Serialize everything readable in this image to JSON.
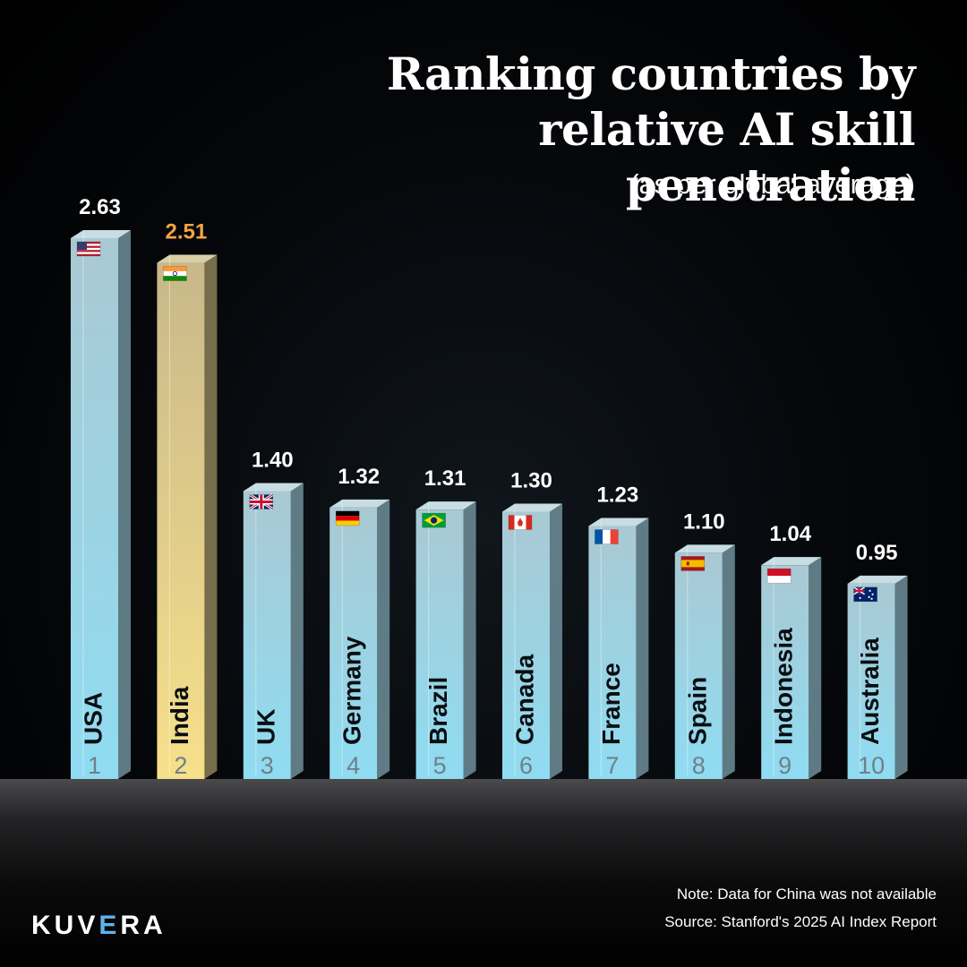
{
  "title_line1": "Ranking countries by",
  "title_line2": "relative AI skill penetration",
  "subtitle": "(as per global average)",
  "note": "Note: Data for China was not available",
  "source": "Source: Stanford's 2025 AI Index Report",
  "brand": {
    "part1": "KUV",
    "part2": "E",
    "part3": "RA"
  },
  "colors": {
    "bar_blue_top": "#a9c9d3",
    "bar_blue_bottom": "#8fdcf2",
    "bar_gold_top": "#c8b88a",
    "bar_gold_bottom": "#f7e08a",
    "highlight_label": "#f2a444",
    "label": "#ffffff"
  },
  "chart_data": {
    "type": "bar",
    "categories": [
      "USA",
      "India",
      "UK",
      "Germany",
      "Brazil",
      "Canada",
      "France",
      "Spain",
      "Indonesia",
      "Australia"
    ],
    "ranks": [
      "1",
      "2",
      "3",
      "4",
      "5",
      "6",
      "7",
      "8",
      "9",
      "10"
    ],
    "values": [
      2.63,
      2.51,
      1.4,
      1.32,
      1.31,
      1.3,
      1.23,
      1.1,
      1.04,
      0.95
    ],
    "value_labels": [
      "2.63",
      "2.51",
      "1.40",
      "1.32",
      "1.31",
      "1.30",
      "1.23",
      "1.10",
      "1.04",
      "0.95"
    ],
    "flags": [
      "us-flag-icon",
      "india-flag-icon",
      "uk-flag-icon",
      "germany-flag-icon",
      "brazil-flag-icon",
      "canada-flag-icon",
      "france-flag-icon",
      "spain-flag-icon",
      "indonesia-flag-icon",
      "australia-flag-icon"
    ],
    "highlight": "India",
    "title": "Ranking countries by relative AI skill penetration",
    "subtitle": "(as per global average)",
    "ylim": [
      0,
      2.63
    ],
    "grid": false,
    "legend": "none"
  }
}
